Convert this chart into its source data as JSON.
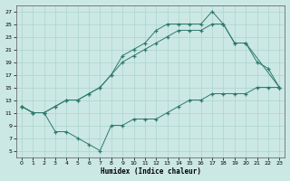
{
  "xlabel": "Humidex (Indice chaleur)",
  "bg_color": "#cce8e4",
  "line_color": "#2d7a6e",
  "grid_color": "#aad4cc",
  "xlim": [
    -0.5,
    23.5
  ],
  "ylim": [
    4,
    28
  ],
  "xticks": [
    0,
    1,
    2,
    3,
    4,
    5,
    6,
    7,
    8,
    9,
    10,
    11,
    12,
    13,
    14,
    15,
    16,
    17,
    18,
    19,
    20,
    21,
    22,
    23
  ],
  "yticks": [
    5,
    7,
    9,
    11,
    13,
    15,
    17,
    19,
    21,
    23,
    25,
    27
  ],
  "line1_x": [
    0,
    1,
    2,
    3,
    4,
    5,
    6,
    7,
    8,
    9,
    10,
    11,
    12,
    13,
    14,
    15,
    16,
    17,
    18,
    19,
    20,
    21,
    22,
    23
  ],
  "line1_y": [
    12,
    11,
    11,
    12,
    13,
    13,
    14,
    15,
    17,
    20,
    21,
    22,
    24,
    25,
    25,
    25,
    25,
    27,
    25,
    22,
    22,
    19,
    18,
    15
  ],
  "line2_x": [
    0,
    1,
    2,
    3,
    4,
    5,
    6,
    7,
    8,
    9,
    10,
    11,
    12,
    13,
    14,
    15,
    16,
    17,
    18,
    19,
    20,
    23
  ],
  "line2_y": [
    12,
    11,
    11,
    12,
    13,
    13,
    14,
    15,
    17,
    19,
    20,
    21,
    22,
    23,
    24,
    24,
    24,
    25,
    25,
    22,
    22,
    15
  ],
  "line3_x": [
    0,
    1,
    2,
    3,
    4,
    5,
    6,
    7,
    8,
    9,
    10,
    11,
    12,
    13,
    14,
    15,
    16,
    17,
    18,
    19,
    20,
    21,
    22,
    23
  ],
  "line3_y": [
    12,
    11,
    11,
    8,
    8,
    7,
    6,
    5,
    9,
    9,
    10,
    10,
    10,
    11,
    12,
    13,
    13,
    14,
    14,
    14,
    14,
    15,
    15,
    15
  ]
}
